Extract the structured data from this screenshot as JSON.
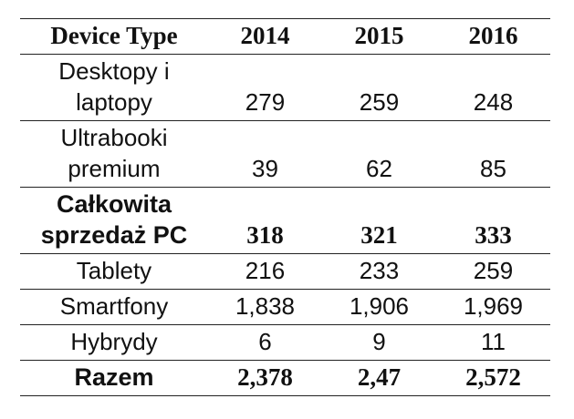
{
  "table": {
    "headers": [
      "Device Type",
      "2014",
      "2015",
      "2016"
    ],
    "rows": [
      {
        "label": [
          "Desktopy i",
          "laptopy"
        ],
        "values": [
          "279",
          "259",
          "248"
        ],
        "bold": false
      },
      {
        "label": [
          "Ultrabooki",
          "premium"
        ],
        "values": [
          "39",
          "62",
          "85"
        ],
        "bold": false
      },
      {
        "label": [
          "Całkowita",
          "sprzedaż PC"
        ],
        "values": [
          "318",
          "321",
          "333"
        ],
        "bold": true
      },
      {
        "label": [
          "Tablety"
        ],
        "values": [
          "216",
          "233",
          "259"
        ],
        "bold": false
      },
      {
        "label": [
          "Smartfony"
        ],
        "values": [
          "1,838",
          "1,906",
          "1,969"
        ],
        "bold": false
      },
      {
        "label": [
          "Hybrydy"
        ],
        "values": [
          "6",
          "9",
          "11"
        ],
        "bold": false
      },
      {
        "label": [
          "Razem"
        ],
        "values": [
          "2,378",
          "2,47",
          "2,572"
        ],
        "bold": true
      }
    ]
  }
}
